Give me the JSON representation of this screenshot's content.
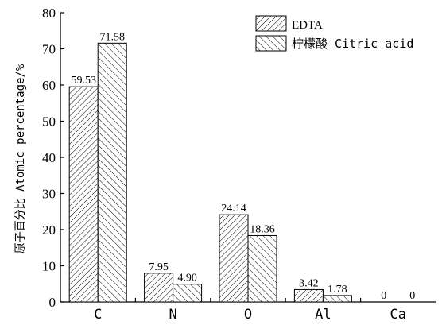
{
  "chart_data": {
    "type": "bar",
    "title": "",
    "xlabel": "",
    "ylabel": "原子百分比 Atomic percentage/%",
    "ylim": [
      0,
      80
    ],
    "yticks": [
      0,
      10,
      20,
      30,
      40,
      50,
      60,
      70,
      80
    ],
    "categories": [
      "C",
      "N",
      "O",
      "Al",
      "Ca"
    ],
    "series": [
      {
        "name": "EDTA",
        "values": [
          59.53,
          7.95,
          24.14,
          3.42,
          0
        ],
        "labels": [
          "59.53",
          "7.95",
          "24.14",
          "3.42",
          "0"
        ],
        "hatch": "forward-diagonal"
      },
      {
        "name": "柠檬酸 Citric acid",
        "values": [
          71.58,
          4.9,
          18.36,
          1.78,
          0
        ],
        "labels": [
          "71.58",
          "4.90",
          "18.36",
          "1.78",
          "0"
        ],
        "hatch": "backward-diagonal"
      }
    ],
    "legend_position": "top-right",
    "grid": false
  },
  "colors": {
    "axis": "#000000",
    "bar_stroke": "#000000",
    "hatch": "#000000",
    "background": "#ffffff"
  }
}
